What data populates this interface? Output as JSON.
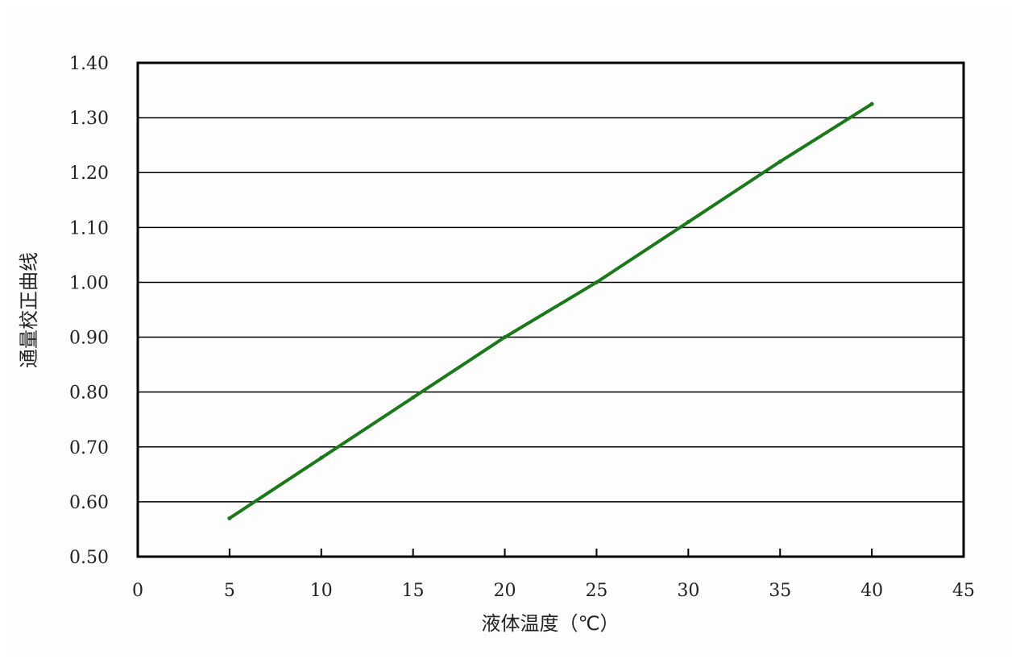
{
  "chart_data": {
    "type": "line",
    "title": "",
    "xlabel": "液体温度（℃）",
    "ylabel": "通量校正曲线",
    "xlim": [
      0,
      45
    ],
    "ylim": [
      0.5,
      1.4
    ],
    "x_ticks": [
      "0",
      "5",
      "10",
      "15",
      "20",
      "25",
      "30",
      "35",
      "40",
      "45"
    ],
    "y_ticks": [
      "0.50",
      "0.60",
      "0.70",
      "0.80",
      "0.90",
      "1.00",
      "1.10",
      "1.20",
      "1.30",
      "1.40"
    ],
    "x_tick_values": [
      0,
      5,
      10,
      15,
      20,
      25,
      30,
      35,
      40,
      45
    ],
    "y_tick_values": [
      0.5,
      0.6,
      0.7,
      0.8,
      0.9,
      1.0,
      1.1,
      1.2,
      1.3,
      1.4
    ],
    "grid": "horizontal",
    "legend": "none",
    "series": [
      {
        "color": "#1a7a1a",
        "x": [
          5,
          10,
          15,
          20,
          25,
          30,
          35,
          40
        ],
        "y": [
          0.57,
          0.68,
          0.79,
          0.9,
          1.0,
          1.11,
          1.22,
          1.325
        ]
      }
    ]
  },
  "colors": {
    "axis": "#000000",
    "grid": "#000000",
    "line": "#1a7a1a"
  }
}
